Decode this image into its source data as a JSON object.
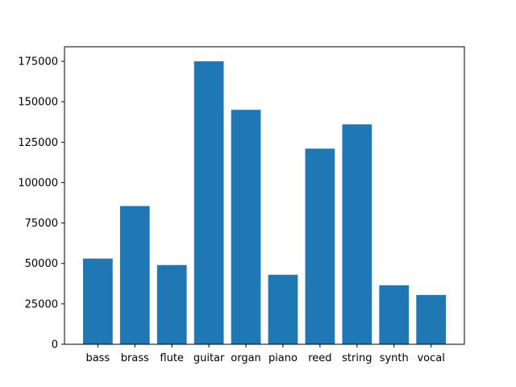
{
  "chart_data": {
    "type": "bar",
    "title": "",
    "xlabel": "",
    "ylabel": "",
    "categories": [
      "bass",
      "brass",
      "flute",
      "guitar",
      "organ",
      "piano",
      "reed",
      "string",
      "synth",
      "vocal"
    ],
    "values": [
      53000,
      85500,
      49000,
      175000,
      145000,
      43000,
      121000,
      136000,
      36500,
      30500
    ],
    "ylim": [
      0,
      184000
    ],
    "yticks": [
      0,
      25000,
      50000,
      75000,
      100000,
      125000,
      150000,
      175000
    ],
    "ytick_labels": [
      "0",
      "25000",
      "50000",
      "75000",
      "100000",
      "125000",
      "150000",
      "175000"
    ],
    "bar_color": "#1f77b4",
    "grid": false,
    "legend": "none"
  }
}
